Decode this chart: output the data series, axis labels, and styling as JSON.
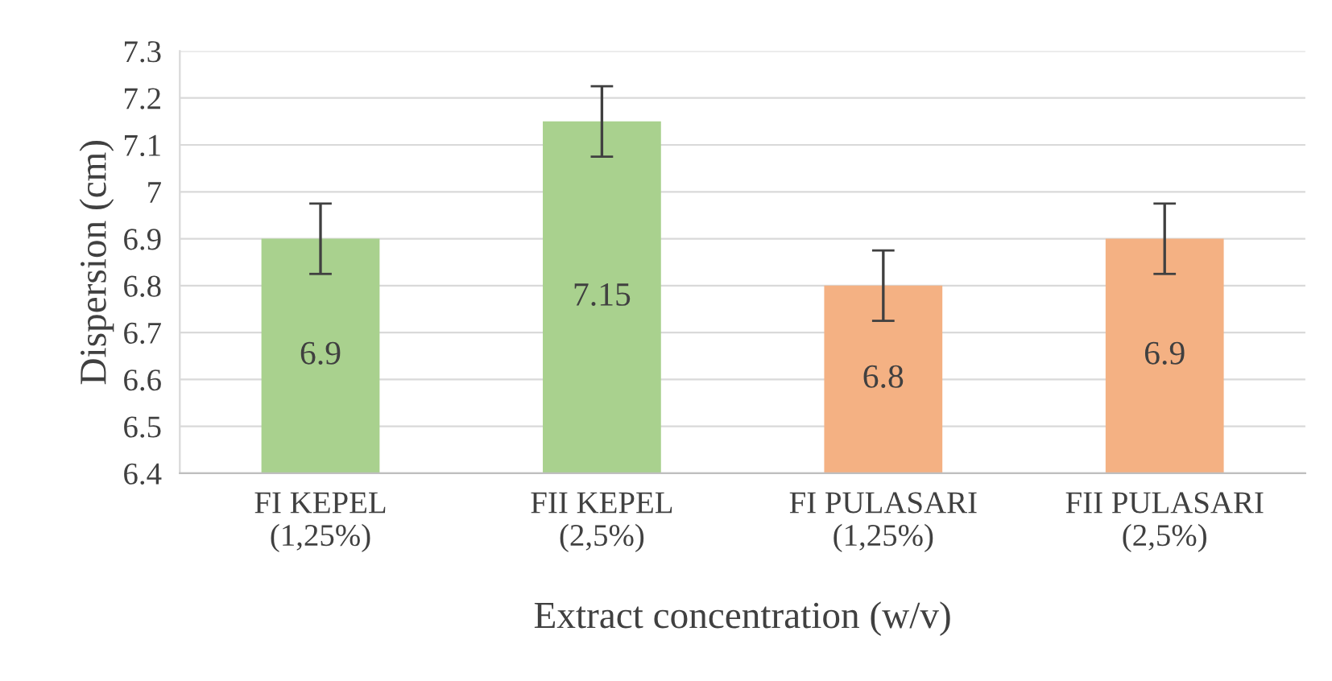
{
  "chart_data": {
    "type": "bar",
    "xlabel": "Extract concentration (w/v)",
    "ylabel": "Dispersion (cm)",
    "categories": [
      "FI KEPEL\n(1,25%)",
      "FII KEPEL\n(2,5%)",
      "FI PULASARI\n(1,25%)",
      "FII PULASARI\n(2,5%)"
    ],
    "values": [
      6.9,
      7.15,
      6.8,
      6.9
    ],
    "colors": [
      "#a9d18e",
      "#a9d18e",
      "#f4b183",
      "#f4b183"
    ],
    "errors": [
      0.075,
      0.075,
      0.075,
      0.075
    ],
    "ylim": [
      6.4,
      7.3
    ],
    "yticks": [
      6.4,
      6.5,
      6.6,
      6.7,
      6.8,
      6.9,
      {
        "value": 7.0,
        "label": "7"
      },
      7.1,
      7.2,
      7.3
    ],
    "grid": "y",
    "data_labels": true
  }
}
